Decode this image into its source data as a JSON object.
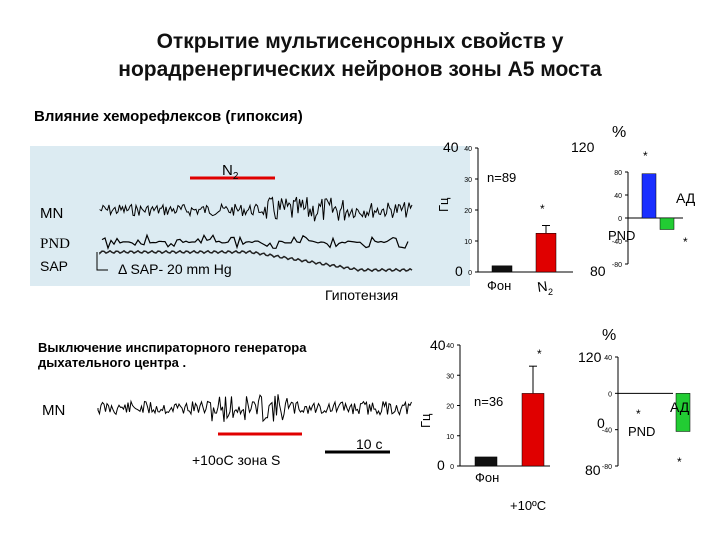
{
  "slide": {
    "title_line1": "Открытие мультисенсорных свойств у",
    "title_line2": "норадренергических нейронов зоны А5 моста",
    "subtitle1": "Влияние хеморефлексов (гипоксия)",
    "subtitle2_line1": "Выключение инспираторного генератора",
    "subtitle2_line2": "дыхательного центра ."
  },
  "top_recording": {
    "n2_label": "N",
    "n2_sub": "2",
    "mn_label": "MN",
    "pnd_label": "PND",
    "sap_label": "SAP",
    "sap_change": "Δ SAP- 20 mm Hg",
    "hypotension_label": "Гипотензия"
  },
  "bottom_recording": {
    "mn_label": "MN",
    "stim_label": "+10oC зона S",
    "scale_label": "10 с"
  },
  "colors": {
    "red": "#e00000",
    "blue": "#1a2fff",
    "green": "#22cc33",
    "panel": "#dcebf2"
  },
  "chart_data": [
    {
      "type": "bar",
      "title": "",
      "ylabel": "Гц",
      "ytick_big_top": "40",
      "ytick_big_bottom": "0",
      "yticks": [
        "40",
        "30",
        "20",
        "10",
        "0"
      ],
      "ylim": [
        0,
        40
      ],
      "categories": [
        "Фон",
        "N2"
      ],
      "cat1": "Фон",
      "cat2": "N",
      "cat2_sub": "2",
      "values": [
        2,
        12.5
      ],
      "colors": [
        "#111111",
        "#e00000"
      ],
      "annotation": "n=89",
      "star": "*"
    },
    {
      "type": "bar",
      "title": "",
      "unit": "%",
      "ytick_big_top": "120",
      "ytick_big_bottom": "80",
      "yticks": [
        "80",
        "40",
        "0",
        "-40",
        "-80"
      ],
      "ylim": [
        -80,
        80
      ],
      "categories": [
        "АД",
        "PND"
      ],
      "label1": "АД",
      "label2": "PND",
      "values": [
        77,
        -20
      ],
      "colors": [
        "#1a2fff",
        "#22cc33"
      ],
      "star": "*"
    },
    {
      "type": "bar",
      "title": "",
      "ylabel": "Гц",
      "ytick_big_top": "40",
      "ytick_big_bottom": "0",
      "yticks": [
        "40",
        "30",
        "20",
        "10",
        "0"
      ],
      "ylim": [
        0,
        40
      ],
      "categories": [
        "Фон",
        "+10ºC"
      ],
      "cat1": "Фон",
      "cat2": "+10ºC",
      "values": [
        3,
        24
      ],
      "colors": [
        "#111111",
        "#e00000"
      ],
      "annotation": "n=36",
      "star": "*"
    },
    {
      "type": "bar",
      "title": "",
      "unit": "%",
      "ytick_big_top": "120",
      "ytick_big_mid": "0",
      "ytick_big_bottom": "80",
      "yticks": [
        "40",
        "0",
        "-40",
        "-80"
      ],
      "ylim": [
        -80,
        40
      ],
      "categories": [
        "АД",
        "PND"
      ],
      "label1": "АД",
      "label2": "PND",
      "values": [
        0,
        -42
      ],
      "colors": [
        "#1a2fff",
        "#22cc33"
      ],
      "star": "*"
    }
  ]
}
